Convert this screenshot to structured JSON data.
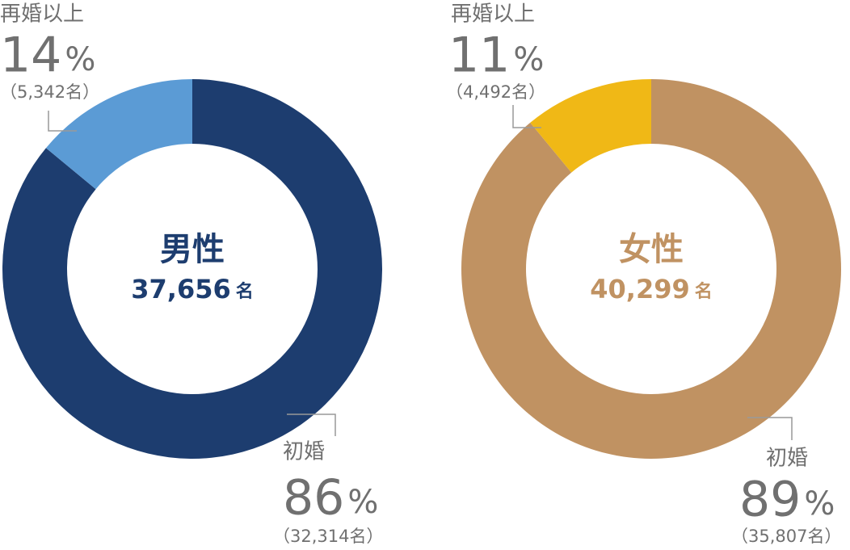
{
  "chart_data": [
    {
      "type": "donut",
      "center_label": "男性",
      "total": 37656,
      "total_label": "37,656",
      "total_unit": "名",
      "center_color": "#1d3d6f",
      "categories": [
        "初婚",
        "再婚以上"
      ],
      "values": [
        86,
        14
      ],
      "value_unit": "%",
      "colors": [
        "#1d3d6f",
        "#5b9bd5"
      ],
      "counts": [
        32314,
        5342
      ],
      "count_labels": [
        "（32,314名）",
        "（5,342名）"
      ]
    },
    {
      "type": "donut",
      "center_label": "女性",
      "total": 40299,
      "total_label": "40,299",
      "total_unit": "名",
      "center_color": "#c09262",
      "categories": [
        "初婚",
        "再婚以上"
      ],
      "values": [
        89,
        11
      ],
      "value_unit": "%",
      "colors": [
        "#c09262",
        "#f0b816"
      ],
      "counts": [
        35807,
        4492
      ],
      "count_labels": [
        "（35,807名）",
        "（4,492名）"
      ]
    }
  ]
}
